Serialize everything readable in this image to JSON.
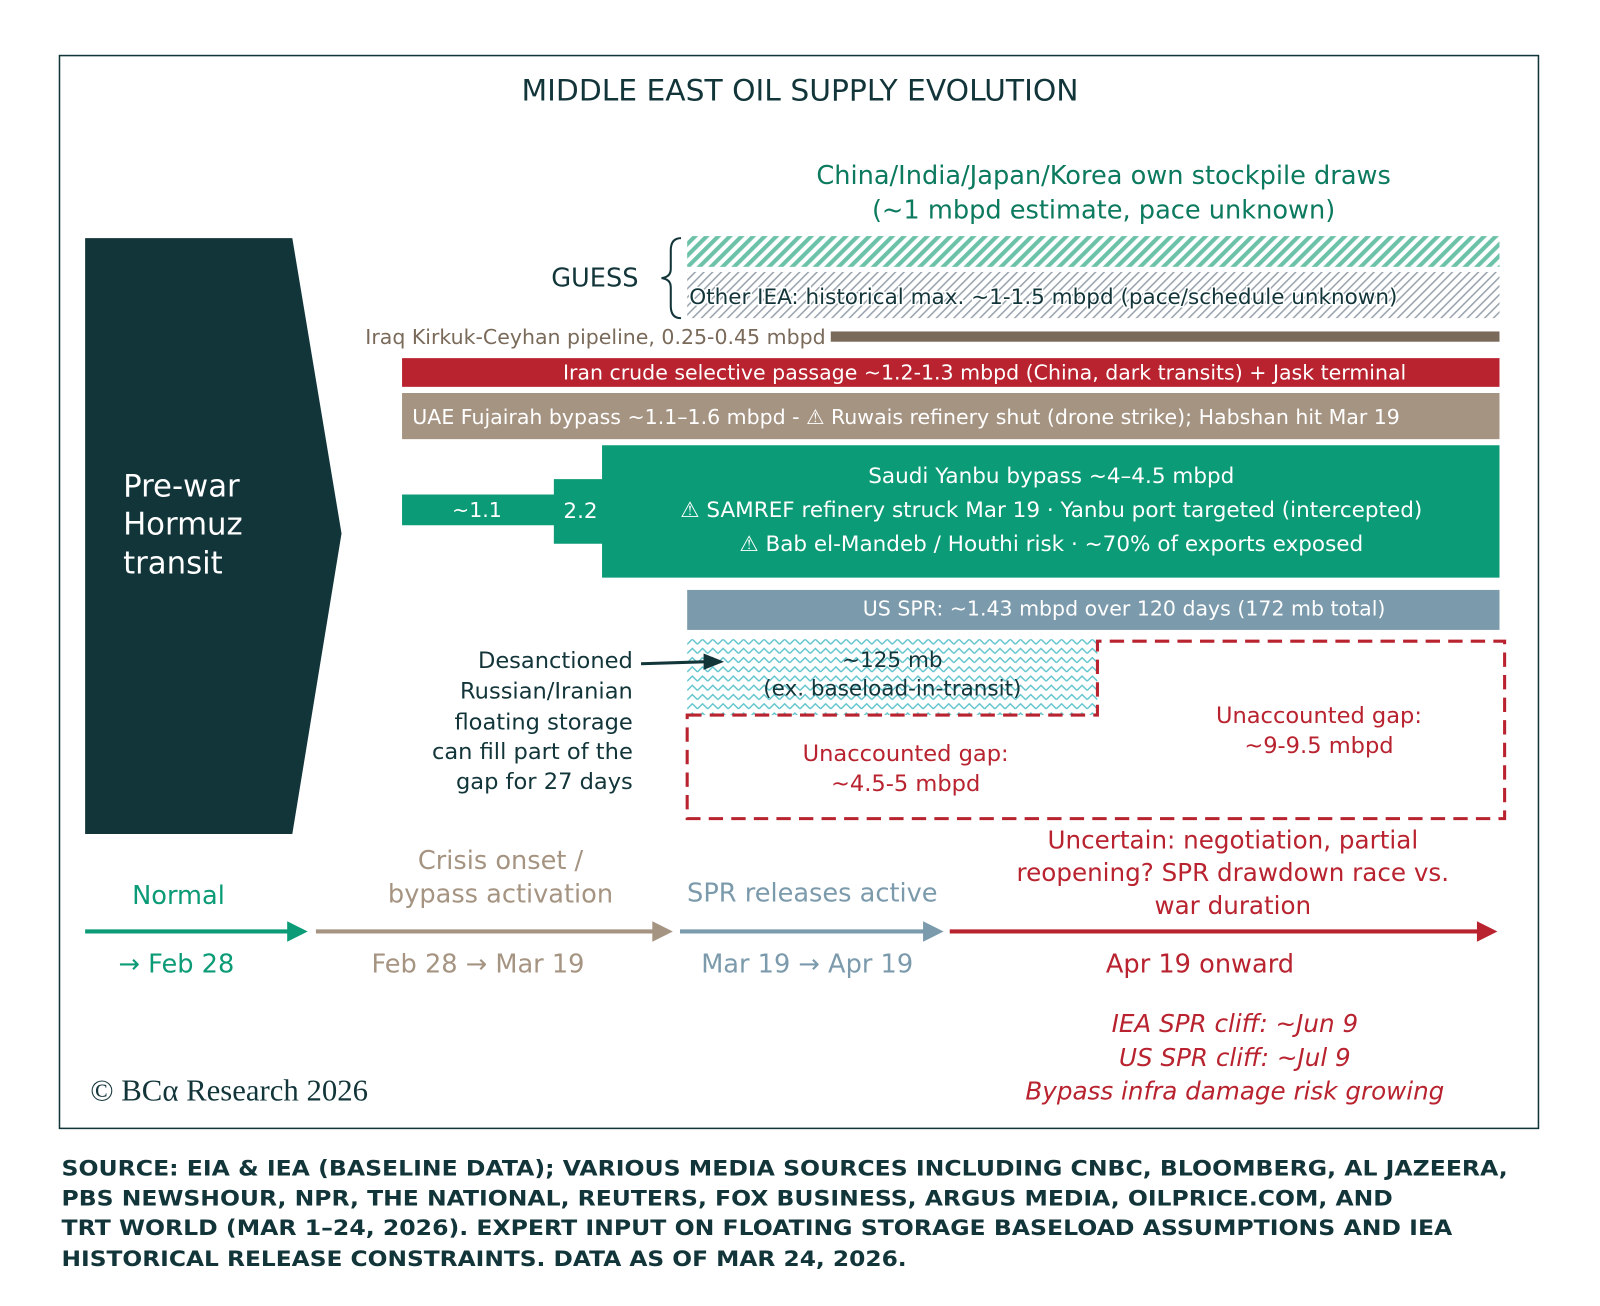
{
  "title": "MIDDLE EAST OIL SUPPLY EVOLUTION",
  "colors": {
    "dark_teal": "#12353a",
    "green": "#0b9b76",
    "brown": "#7a6a5a",
    "tan": "#a69482",
    "red": "#b8232f",
    "steel": "#7b9aac",
    "zigzag": "#5cc3cc"
  },
  "stockpile": {
    "line1": "China/India/Japan/Korea own stockpile draws",
    "line2": "(~1 mbpd estimate, pace unknown)"
  },
  "guess_label": "GUESS",
  "other_iea": "Other IEA: historical max. ~1-1.5 mbpd (pace/schedule unknown)",
  "iraq": "Iraq Kirkuk-Ceyhan pipeline, 0.25-0.45 mbpd",
  "iran": "Iran crude selective passage ~1.2-1.3 mbpd (China, dark transits) + Jask terminal",
  "uae": "UAE Fujairah bypass ~1.1–1.6 mbpd - ⚠ Ruwais refinery shut (drone strike); Habshan hit Mar 19",
  "saudi": {
    "step1": "~1.1",
    "step2": "2.2",
    "line1": "Saudi Yanbu bypass ~4–4.5 mbpd",
    "line2": "⚠ SAMREF refinery struck Mar 19 · Yanbu port targeted (intercepted)",
    "line3": "⚠ Bab el-Mandeb / Houthi risk · ~70% of exports exposed"
  },
  "us_spr": "US SPR: ~1.43 mbpd over 120 days (172 mb total)",
  "floating": {
    "line1": "~125 mb",
    "line2": "(ex. baseload-in-transit)",
    "note": [
      "Desanctioned",
      "Russian/Iranian",
      "floating storage",
      "can fill part of the",
      "gap for 27 days"
    ]
  },
  "gap1": {
    "line1": "Unaccounted gap:",
    "line2": "~4.5-5 mbpd"
  },
  "gap2": {
    "line1": "Unaccounted gap:",
    "line2": "~9-9.5 mbpd"
  },
  "prewar": [
    "Pre-war",
    "Hormuz",
    "transit"
  ],
  "timeline": [
    {
      "label": [
        "Normal"
      ],
      "dates": "→ Feb 28"
    },
    {
      "label": [
        "Crisis onset /",
        "bypass activation"
      ],
      "dates": "Feb 28 → Mar 19"
    },
    {
      "label": [
        "SPR releases active"
      ],
      "dates": "Mar 19 → Apr 19"
    },
    {
      "label": [
        "Uncertain: negotiation, partial",
        "reopening? SPR drawdown race vs.",
        "war duration"
      ],
      "dates": "Apr 19 onward"
    }
  ],
  "cliffs": [
    "IEA SPR cliff: ~Jun 9",
    "US SPR cliff: ~Jul 9",
    "Bypass infra damage risk growing"
  ],
  "copyright": "© BCα Research 2026",
  "source": [
    "SOURCE: EIA & IEA (BASELINE DATA); VARIOUS MEDIA SOURCES INCLUDING CNBC, BLOOMBERG, AL JAZEERA,",
    "PBS NEWSHOUR, NPR, THE NATIONAL, REUTERS, FOX BUSINESS, ARGUS MEDIA, OILPRICE.COM, AND",
    "TRT WORLD (MAR 1–24, 2026). EXPERT INPUT ON FLOATING STORAGE BASELOAD ASSUMPTIONS AND IEA",
    "HISTORICAL RELEASE CONSTRAINTS. DATA AS OF MAR 24, 2026."
  ]
}
